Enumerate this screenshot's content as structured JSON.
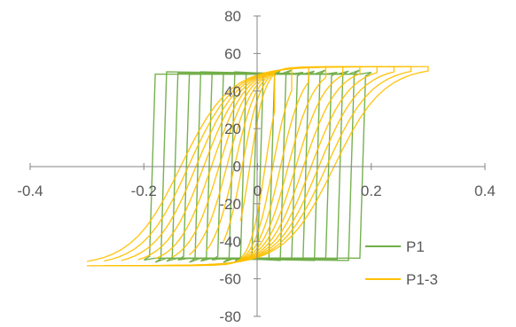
{
  "chart_data": {
    "type": "line",
    "title": "",
    "xlabel": "",
    "ylabel": "",
    "xlim": [
      -0.4,
      0.4
    ],
    "ylim": [
      -80,
      80
    ],
    "x_ticks": [
      "-0.4",
      "-0.2",
      "0",
      "0.2",
      "0.4"
    ],
    "y_ticks": [
      "80",
      "60",
      "40",
      "20",
      "0",
      "-20",
      "-40",
      "-60",
      "-80"
    ],
    "grid": false,
    "legend_position": "bottom-right",
    "series": [
      {
        "name": "P1",
        "color": "#70AD47",
        "description": "parallelogram hysteresis loops, increasing amplitude",
        "loop_amplitudes": [
          0.02,
          0.04,
          0.06,
          0.08,
          0.1,
          0.12,
          0.14,
          0.16,
          0.18,
          0.2
        ],
        "yield_stress": 50,
        "saturation_stress": 48,
        "loops": []
      },
      {
        "name": "P1-3",
        "color": "#FFC000",
        "description": "rounded hysteresis loops, increasing amplitude",
        "loop_amplitudes": [
          0.03,
          0.06,
          0.09,
          0.12,
          0.15,
          0.18,
          0.21,
          0.24,
          0.27,
          0.3
        ],
        "peak_stress": 53,
        "loops": []
      }
    ]
  }
}
